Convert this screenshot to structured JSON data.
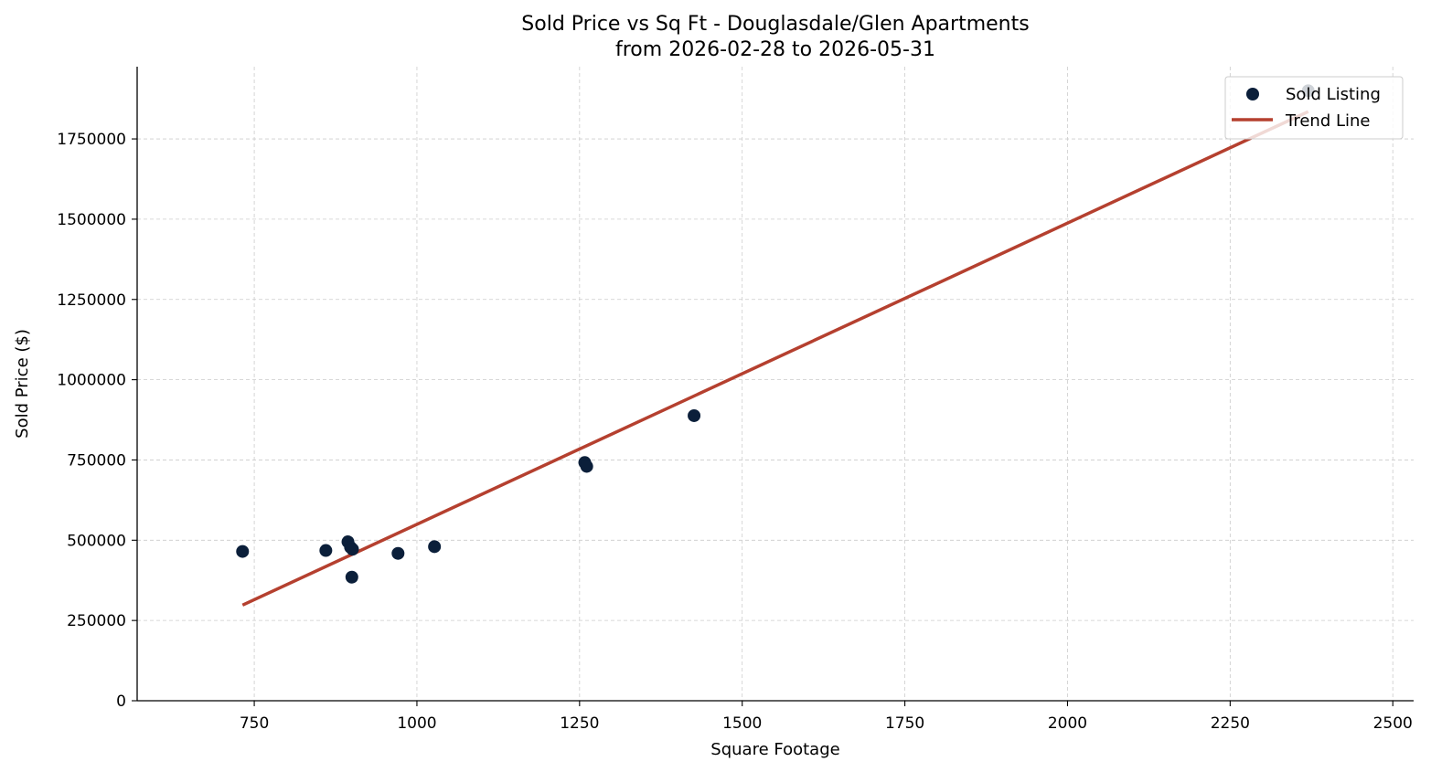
{
  "chart_data": {
    "type": "scatter",
    "title": "Sold Price vs Sq Ft - Douglasdale/Glen Apartments",
    "subtitle": "from 2026-02-28 to 2026-05-31",
    "xlabel": "Square Footage",
    "ylabel": "Sold Price ($)",
    "xlim": [
      570,
      2532
    ],
    "ylim": [
      0,
      1975000
    ],
    "xticks": [
      750,
      1000,
      1250,
      1500,
      1750,
      2000,
      2250,
      2500
    ],
    "yticks": [
      0,
      250000,
      500000,
      750000,
      1000000,
      1250000,
      1500000,
      1750000
    ],
    "grid": true,
    "legend_position": "top-right",
    "series": [
      {
        "name": "Sold Listing",
        "kind": "scatter",
        "color": "#0b1f3a",
        "points": [
          {
            "x": 732,
            "y": 465000
          },
          {
            "x": 860,
            "y": 468000
          },
          {
            "x": 894,
            "y": 495000
          },
          {
            "x": 898,
            "y": 478000
          },
          {
            "x": 901,
            "y": 472000
          },
          {
            "x": 900,
            "y": 385000
          },
          {
            "x": 971,
            "y": 459000
          },
          {
            "x": 1027,
            "y": 480000
          },
          {
            "x": 1258,
            "y": 742000
          },
          {
            "x": 1261,
            "y": 730000
          },
          {
            "x": 1426,
            "y": 888000
          },
          {
            "x": 2370,
            "y": 1900000
          }
        ]
      },
      {
        "name": "Trend Line",
        "kind": "line",
        "color": "#b5402f",
        "points": [
          {
            "x": 732,
            "y": 298000
          },
          {
            "x": 2370,
            "y": 1835000
          }
        ]
      }
    ]
  }
}
